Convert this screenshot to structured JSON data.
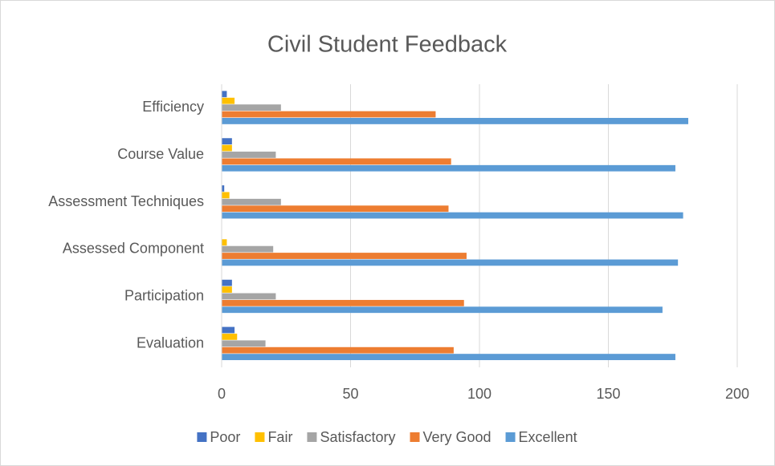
{
  "chart_data": {
    "type": "hbar",
    "title": "Civil Student Feedback",
    "categories": [
      "Evaluation",
      "Participation",
      "Assessed Component",
      "Assessment Techniques",
      "Course Value",
      "Efficiency"
    ],
    "series": [
      {
        "name": "Poor",
        "color": "#4472c4",
        "values": [
          5,
          4,
          0,
          1,
          4,
          2
        ]
      },
      {
        "name": "Fair",
        "color": "#ffc000",
        "values": [
          6,
          4,
          2,
          3,
          4,
          5
        ]
      },
      {
        "name": "Satisfactory",
        "color": "#a5a5a5",
        "values": [
          17,
          21,
          20,
          23,
          21,
          23
        ]
      },
      {
        "name": "Very Good",
        "color": "#ed7d31",
        "values": [
          90,
          94,
          95,
          88,
          89,
          83
        ]
      },
      {
        "name": "Excellent",
        "color": "#5b9bd5",
        "values": [
          176,
          171,
          177,
          179,
          176,
          181
        ]
      }
    ],
    "xlim": [
      0,
      200
    ],
    "xticks": [
      0,
      50,
      100,
      150,
      200
    ],
    "grid": true,
    "legend": "bottom"
  }
}
